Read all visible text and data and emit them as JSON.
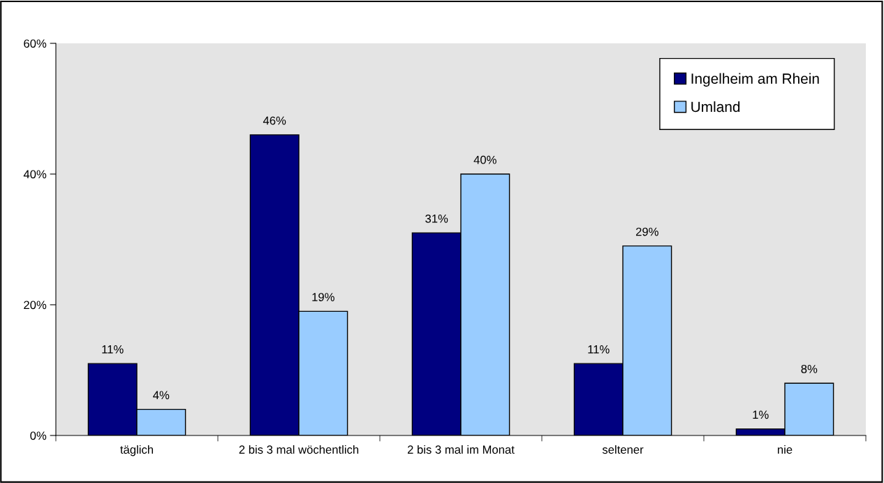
{
  "chart_data": {
    "type": "bar",
    "categories": [
      "täglich",
      "2 bis 3 mal wöchentlich",
      "2 bis 3 mal im Monat",
      "seltener",
      "nie"
    ],
    "series": [
      {
        "name": "Ingelheim am Rhein",
        "color": "#000080",
        "values": [
          11,
          46,
          31,
          11,
          1
        ],
        "value_labels": [
          "11%",
          "46%",
          "31%",
          "11%",
          "1%"
        ]
      },
      {
        "name": "Umland",
        "color": "#99ccff",
        "values": [
          4,
          19,
          40,
          29,
          8
        ],
        "value_labels": [
          "4%",
          "19%",
          "40%",
          "29%",
          "8%"
        ]
      }
    ],
    "ylim": [
      0,
      60
    ],
    "yticks": [
      {
        "value": 0,
        "label": "0%"
      },
      {
        "value": 20,
        "label": "20%"
      },
      {
        "value": 40,
        "label": "40%"
      },
      {
        "value": 60,
        "label": "60%"
      }
    ],
    "grid": false,
    "legend": "top right"
  }
}
